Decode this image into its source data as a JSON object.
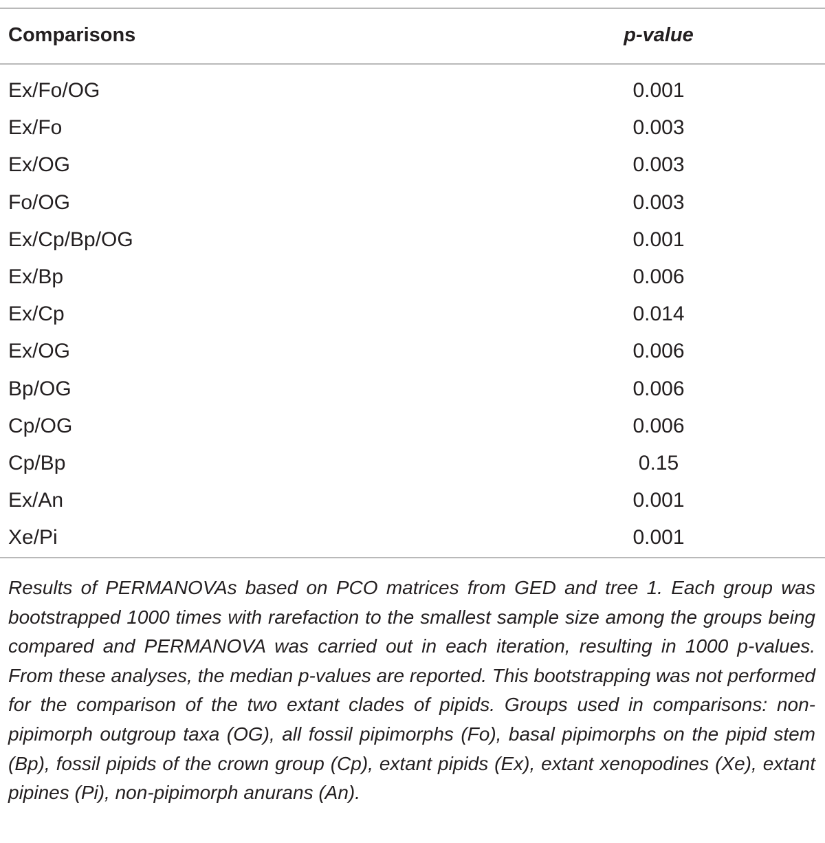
{
  "table": {
    "headers": {
      "comparisons": "Comparisons",
      "p_value": "p-value"
    },
    "rows": [
      {
        "comparison": "Ex/Fo/OG",
        "p_value": "0.001"
      },
      {
        "comparison": "Ex/Fo",
        "p_value": "0.003"
      },
      {
        "comparison": "Ex/OG",
        "p_value": "0.003"
      },
      {
        "comparison": "Fo/OG",
        "p_value": "0.003"
      },
      {
        "comparison": "Ex/Cp/Bp/OG",
        "p_value": "0.001"
      },
      {
        "comparison": "Ex/Bp",
        "p_value": "0.006"
      },
      {
        "comparison": "Ex/Cp",
        "p_value": "0.014"
      },
      {
        "comparison": "Ex/OG",
        "p_value": "0.006"
      },
      {
        "comparison": "Bp/OG",
        "p_value": "0.006"
      },
      {
        "comparison": "Cp/OG",
        "p_value": "0.006"
      },
      {
        "comparison": "Cp/Bp",
        "p_value": "0.15"
      },
      {
        "comparison": "Ex/An",
        "p_value": "0.001"
      },
      {
        "comparison": "Xe/Pi",
        "p_value": "0.001"
      }
    ],
    "footnote": "Results of PERMANOVAs based on PCO matrices from GED and tree 1. Each group was bootstrapped 1000 times with rarefaction to the smallest sample size among the groups being compared and PERMANOVA was carried out in each iteration, resulting in 1000 p-values. From these analyses, the median p-values are reported. This bootstrapping was not performed for the comparison of the two extant clades of pipids. Groups used in comparisons: non-pipimorph outgroup taxa (OG), all fossil pipimorphs (Fo), basal pipimorphs on the pipid stem (Bp), fossil pipids of the crown group (Cp), extant pipids (Ex), extant xenopodines (Xe), extant pipines (Pi), non-pipimorph anurans (An)."
  }
}
